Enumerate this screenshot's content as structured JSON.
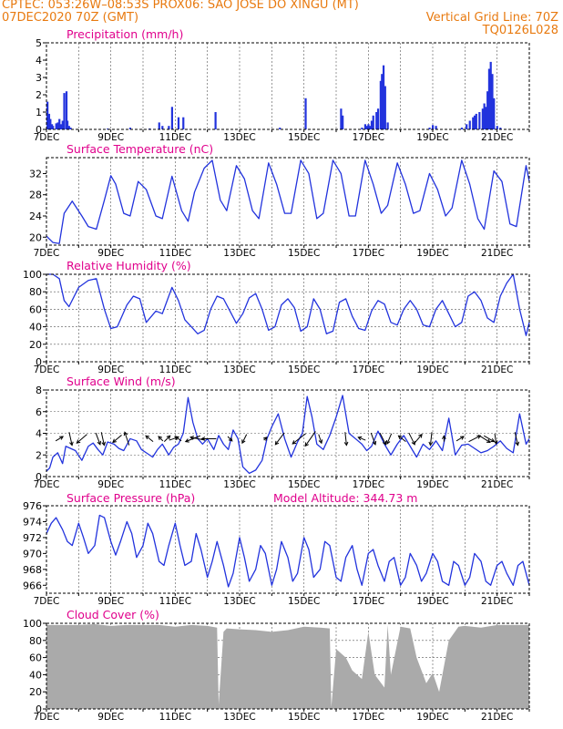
{
  "header": {
    "line1_left": "CPTEC:   053:26W–08:53S   PROX06: SAO JOSE DO XINGU (MT)",
    "line2_left": "07DEC2020 70Z (GMT)",
    "line2_right": "Vertical Grid Line: 70Z",
    "line3_right": "TQ0126L028"
  },
  "colors": {
    "header": "#e87a10",
    "title": "#e0008c",
    "series": "#2233dd",
    "cloud": "#aaaaaa",
    "arrow": "#000000"
  },
  "x_ticks": [
    "7DEC",
    "9DEC",
    "11DEC",
    "13DEC",
    "15DEC",
    "17DEC",
    "19DEC",
    "21DEC"
  ],
  "chart_data": [
    {
      "type": "bar",
      "title": "Precipitation (mm/h)",
      "ylim": [
        0,
        5
      ],
      "yticks": [
        "0",
        "1",
        "2",
        "3",
        "4",
        "5"
      ],
      "x_range_days": [
        7,
        22
      ],
      "x": [
        7.03,
        7.08,
        7.12,
        7.17,
        7.2,
        7.3,
        7.35,
        7.4,
        7.45,
        7.5,
        7.55,
        7.62,
        7.65,
        7.7,
        7.75,
        8.9,
        9.6,
        10.2,
        10.5,
        10.6,
        10.8,
        10.9,
        11.1,
        11.25,
        12.25,
        14.25,
        15.05,
        16.15,
        16.2,
        16.8,
        16.9,
        16.95,
        17.0,
        17.05,
        17.1,
        17.15,
        17.25,
        17.3,
        17.38,
        17.42,
        17.47,
        17.52,
        17.6,
        18.9,
        19.0,
        19.1,
        19.9,
        20.05,
        20.15,
        20.25,
        20.3,
        20.35,
        20.45,
        20.55,
        20.6,
        20.65,
        20.7,
        20.75,
        20.8,
        20.85,
        20.9,
        21.0,
        21.1
      ],
      "values": [
        1.6,
        0.9,
        0.6,
        0.3,
        0.2,
        0.35,
        0.4,
        0.6,
        0.3,
        0.5,
        2.1,
        2.2,
        0.5,
        0.2,
        0.1,
        0.05,
        0.1,
        0.05,
        0.4,
        0.2,
        0.2,
        1.3,
        0.7,
        0.7,
        1.0,
        0.1,
        1.8,
        1.2,
        0.8,
        0.1,
        0.3,
        0.2,
        0.3,
        0.2,
        0.5,
        0.8,
        1.0,
        1.2,
        2.8,
        3.2,
        3.7,
        2.5,
        0.4,
        0.1,
        0.25,
        0.2,
        0.1,
        0.3,
        0.5,
        0.7,
        0.8,
        0.9,
        1.0,
        1.2,
        1.5,
        1.3,
        2.2,
        3.5,
        3.9,
        3.2,
        1.8,
        0.2,
        0.1
      ]
    },
    {
      "type": "line",
      "title": "Surface Temperature (nC)",
      "ylim": [
        18.5,
        35
      ],
      "yticks": [
        "20",
        "24",
        "28",
        "32"
      ],
      "x_range_days": [
        7,
        22
      ],
      "x": [
        7.0,
        7.2,
        7.4,
        7.55,
        7.8,
        8.1,
        8.3,
        8.55,
        8.8,
        9.0,
        9.15,
        9.4,
        9.6,
        9.85,
        10.1,
        10.4,
        10.6,
        10.9,
        11.2,
        11.4,
        11.6,
        11.9,
        12.15,
        12.4,
        12.6,
        12.9,
        13.15,
        13.4,
        13.6,
        13.9,
        14.15,
        14.4,
        14.6,
        14.9,
        15.15,
        15.4,
        15.6,
        15.9,
        16.15,
        16.4,
        16.6,
        16.9,
        17.15,
        17.4,
        17.6,
        17.9,
        18.15,
        18.4,
        18.6,
        18.9,
        19.15,
        19.4,
        19.6,
        19.9,
        20.15,
        20.4,
        20.6,
        20.9,
        21.15,
        21.4,
        21.6,
        21.9,
        22.0
      ],
      "values": [
        20.2,
        19.0,
        18.8,
        24.5,
        26.8,
        24.0,
        22.0,
        21.5,
        27.0,
        31.6,
        30.0,
        24.5,
        24.0,
        30.5,
        29.0,
        24.0,
        23.5,
        31.5,
        25.0,
        23.0,
        28.5,
        33.0,
        34.5,
        27.0,
        25.0,
        33.5,
        31.0,
        25.0,
        23.5,
        34.0,
        30.0,
        24.5,
        24.5,
        34.5,
        32.0,
        23.5,
        24.5,
        34.5,
        32.0,
        24.0,
        24.0,
        34.5,
        30.0,
        24.5,
        26.0,
        34.0,
        30.0,
        24.5,
        25.0,
        32.0,
        29.0,
        24.0,
        25.5,
        34.5,
        30.0,
        23.5,
        21.5,
        32.5,
        30.5,
        22.5,
        22.0,
        33.5,
        30.5
      ]
    },
    {
      "type": "line",
      "title": "Relative Humidity (%)",
      "ylim": [
        0,
        100
      ],
      "yticks": [
        "0",
        "20",
        "40",
        "60",
        "80",
        "100"
      ],
      "x_range_days": [
        7,
        22
      ],
      "x": [
        7.0,
        7.2,
        7.4,
        7.55,
        7.7,
        8.0,
        8.3,
        8.55,
        8.8,
        9.0,
        9.2,
        9.5,
        9.7,
        9.9,
        10.1,
        10.4,
        10.6,
        10.9,
        11.1,
        11.3,
        11.5,
        11.7,
        11.9,
        12.1,
        12.3,
        12.5,
        12.7,
        12.9,
        13.1,
        13.3,
        13.5,
        13.7,
        13.9,
        14.1,
        14.3,
        14.5,
        14.7,
        14.9,
        15.1,
        15.3,
        15.5,
        15.7,
        15.9,
        16.1,
        16.3,
        16.5,
        16.7,
        16.9,
        17.1,
        17.3,
        17.5,
        17.7,
        17.9,
        18.1,
        18.3,
        18.5,
        18.7,
        18.9,
        19.1,
        19.3,
        19.5,
        19.7,
        19.9,
        20.1,
        20.3,
        20.5,
        20.7,
        20.9,
        21.1,
        21.3,
        21.5,
        21.7,
        21.9,
        22.0
      ],
      "values": [
        100,
        100,
        95,
        70,
        63,
        85,
        93,
        95,
        60,
        38,
        40,
        65,
        75,
        72,
        45,
        58,
        55,
        85,
        70,
        48,
        40,
        32,
        36,
        60,
        75,
        72,
        58,
        44,
        55,
        73,
        78,
        60,
        36,
        40,
        65,
        72,
        62,
        35,
        40,
        72,
        60,
        32,
        35,
        68,
        72,
        52,
        38,
        36,
        58,
        70,
        66,
        45,
        42,
        60,
        70,
        60,
        42,
        40,
        60,
        70,
        55,
        40,
        45,
        75,
        80,
        70,
        50,
        45,
        75,
        90,
        100,
        60,
        30,
        45
      ]
    },
    {
      "type": "line",
      "title": "Surface Wind (m/s)",
      "ylim": [
        0,
        8
      ],
      "yticks": [
        "0",
        "2",
        "4",
        "6",
        "8"
      ],
      "x_range_days": [
        7,
        22
      ],
      "x": [
        7.0,
        7.1,
        7.2,
        7.35,
        7.5,
        7.6,
        7.75,
        7.9,
        8.1,
        8.3,
        8.45,
        8.6,
        8.75,
        8.9,
        9.1,
        9.25,
        9.4,
        9.6,
        9.8,
        9.95,
        10.1,
        10.3,
        10.45,
        10.6,
        10.8,
        10.95,
        11.1,
        11.25,
        11.4,
        11.55,
        11.7,
        11.85,
        12.0,
        12.2,
        12.35,
        12.5,
        12.65,
        12.8,
        12.95,
        13.1,
        13.3,
        13.5,
        13.7,
        13.85,
        14.0,
        14.2,
        14.4,
        14.6,
        14.8,
        14.95,
        15.1,
        15.25,
        15.4,
        15.6,
        15.8,
        16.0,
        16.2,
        16.4,
        16.6,
        16.8,
        16.95,
        17.1,
        17.3,
        17.5,
        17.7,
        17.9,
        18.1,
        18.3,
        18.5,
        18.7,
        18.9,
        19.1,
        19.3,
        19.5,
        19.7,
        19.9,
        20.1,
        20.3,
        20.5,
        20.7,
        20.9,
        21.1,
        21.3,
        21.5,
        21.7,
        21.9,
        22.0
      ],
      "values": [
        0.5,
        0.8,
        1.8,
        2.2,
        1.2,
        2.8,
        2.6,
        2.4,
        1.5,
        2.8,
        3.1,
        2.5,
        2.0,
        3.2,
        3.0,
        2.6,
        2.4,
        3.5,
        3.3,
        2.5,
        2.2,
        1.8,
        2.5,
        3.0,
        2.0,
        2.7,
        3.0,
        4.0,
        7.3,
        5.0,
        3.5,
        3.0,
        3.5,
        2.5,
        3.8,
        3.0,
        2.5,
        4.3,
        3.5,
        0.9,
        0.3,
        0.6,
        1.5,
        3.5,
        4.6,
        5.8,
        3.5,
        1.8,
        3.2,
        4.0,
        7.4,
        5.5,
        3.0,
        2.5,
        3.8,
        5.5,
        7.5,
        4.0,
        3.5,
        3.0,
        2.4,
        2.8,
        4.2,
        3.0,
        2.0,
        3.0,
        3.8,
        2.8,
        1.8,
        3.0,
        2.5,
        3.3,
        2.4,
        5.4,
        2.0,
        2.9,
        3.0,
        2.6,
        2.2,
        2.4,
        2.8,
        3.3,
        2.6,
        2.2,
        5.8,
        3.0,
        3.5
      ]
    },
    {
      "type": "line",
      "title": "Surface Pressure (hPa)",
      "annotation": "Model Altitude: 344.73 m",
      "ylim": [
        965,
        976
      ],
      "yticks": [
        "966",
        "968",
        "970",
        "972",
        "974",
        "976"
      ],
      "x_range_days": [
        7,
        22
      ],
      "x": [
        7.0,
        7.15,
        7.3,
        7.5,
        7.65,
        7.8,
        8.0,
        8.15,
        8.3,
        8.5,
        8.65,
        8.8,
        9.0,
        9.15,
        9.3,
        9.5,
        9.65,
        9.8,
        10.0,
        10.15,
        10.3,
        10.5,
        10.65,
        10.8,
        11.0,
        11.15,
        11.3,
        11.5,
        11.65,
        11.8,
        12.0,
        12.15,
        12.3,
        12.5,
        12.65,
        12.8,
        13.0,
        13.15,
        13.3,
        13.5,
        13.65,
        13.8,
        14.0,
        14.15,
        14.3,
        14.5,
        14.65,
        14.8,
        15.0,
        15.15,
        15.3,
        15.5,
        15.65,
        15.8,
        16.0,
        16.15,
        16.3,
        16.5,
        16.65,
        16.8,
        17.0,
        17.15,
        17.3,
        17.5,
        17.65,
        17.8,
        18.0,
        18.15,
        18.3,
        18.5,
        18.65,
        18.8,
        19.0,
        19.15,
        19.3,
        19.5,
        19.65,
        19.8,
        20.0,
        20.15,
        20.3,
        20.5,
        20.65,
        20.8,
        21.0,
        21.15,
        21.3,
        21.5,
        21.65,
        21.8,
        22.0
      ],
      "values": [
        972.5,
        973.8,
        974.5,
        973.0,
        971.5,
        971.0,
        973.8,
        972.0,
        970.0,
        971.0,
        974.8,
        974.5,
        971.5,
        969.8,
        971.5,
        974.0,
        972.5,
        969.5,
        971.0,
        973.8,
        972.5,
        969.0,
        968.5,
        971.0,
        973.8,
        971.0,
        968.5,
        969.0,
        972.5,
        970.5,
        967.0,
        969.0,
        971.5,
        968.5,
        965.8,
        967.5,
        972.0,
        969.5,
        966.5,
        968.0,
        971.0,
        970.0,
        966.0,
        968.0,
        971.5,
        969.5,
        966.5,
        967.5,
        972.0,
        970.5,
        967.0,
        968.0,
        971.5,
        971.0,
        967.0,
        966.5,
        969.5,
        971.0,
        968.0,
        966.0,
        970.0,
        970.5,
        968.5,
        966.5,
        969.0,
        969.5,
        966.0,
        967.0,
        970.0,
        968.5,
        966.5,
        967.5,
        970.0,
        969.0,
        966.5,
        966.0,
        969.0,
        968.5,
        966.0,
        967.0,
        970.0,
        969.0,
        966.5,
        966.0,
        968.5,
        969.0,
        967.5,
        966.0,
        968.5,
        969.0,
        966.0
      ]
    },
    {
      "type": "area",
      "title": "Cloud Cover (%)",
      "ylim": [
        0,
        100
      ],
      "yticks": [
        "0",
        "20",
        "40",
        "60",
        "80",
        "100"
      ],
      "x_range_days": [
        7,
        22
      ],
      "x": [
        7.0,
        7.5,
        8.0,
        8.5,
        9.0,
        9.5,
        10.0,
        10.5,
        11.0,
        11.5,
        12.0,
        12.3,
        12.35,
        12.5,
        12.6,
        13.0,
        13.5,
        14.0,
        14.5,
        15.0,
        15.5,
        15.8,
        15.85,
        16.0,
        16.3,
        16.5,
        16.8,
        17.0,
        17.2,
        17.5,
        17.6,
        17.7,
        18.0,
        18.3,
        18.5,
        18.8,
        19.0,
        19.2,
        19.5,
        19.8,
        20.0,
        20.5,
        21.0,
        21.5,
        22.0
      ],
      "values": [
        98,
        98,
        98,
        99,
        97,
        98,
        98,
        98,
        96,
        98,
        97,
        95,
        5,
        90,
        94,
        93,
        92,
        90,
        92,
        96,
        95,
        94,
        2,
        70,
        60,
        45,
        35,
        90,
        40,
        25,
        98,
        40,
        96,
        94,
        60,
        30,
        42,
        20,
        80,
        96,
        97,
        95,
        98,
        98,
        98
      ]
    }
  ],
  "wind_arrows": [
    {
      "x": 7.4,
      "u": 0.5,
      "v": 0.3
    },
    {
      "x": 7.75,
      "u": 0.2,
      "v": -0.9
    },
    {
      "x": 8.1,
      "u": -0.7,
      "v": -0.6
    },
    {
      "x": 8.6,
      "u": 0.3,
      "v": -0.8
    },
    {
      "x": 8.75,
      "u": 0.2,
      "v": -0.9
    },
    {
      "x": 9.2,
      "u": -0.6,
      "v": -0.5
    },
    {
      "x": 9.5,
      "u": -0.3,
      "v": 0.9
    },
    {
      "x": 10.2,
      "u": -0.5,
      "v": 0.4
    },
    {
      "x": 10.55,
      "u": -0.3,
      "v": 0.3
    },
    {
      "x": 10.75,
      "u": 0.4,
      "v": 0.4
    },
    {
      "x": 10.95,
      "u": 0.6,
      "v": 0.2
    },
    {
      "x": 11.1,
      "u": -0.4,
      "v": 0.3
    },
    {
      "x": 11.55,
      "u": -1.0,
      "v": -0.4
    },
    {
      "x": 11.7,
      "u": -1.0,
      "v": 0.2
    },
    {
      "x": 12.05,
      "u": -1.0,
      "v": 0.0
    },
    {
      "x": 12.7,
      "u": 0.3,
      "v": -0.3
    },
    {
      "x": 13.15,
      "u": -0.3,
      "v": -0.6
    },
    {
      "x": 13.8,
      "u": 0.2,
      "v": 0.2
    },
    {
      "x": 14.25,
      "u": -0.6,
      "v": -0.8
    },
    {
      "x": 14.85,
      "u": -0.9,
      "v": -0.7
    },
    {
      "x": 15.2,
      "u": -0.7,
      "v": -1.0
    },
    {
      "x": 15.5,
      "u": 0.2,
      "v": -0.6
    },
    {
      "x": 16.3,
      "u": 0.1,
      "v": -0.9
    },
    {
      "x": 16.8,
      "u": -0.5,
      "v": 0.2
    },
    {
      "x": 17.15,
      "u": 0.3,
      "v": -0.8
    },
    {
      "x": 17.45,
      "u": 0.4,
      "v": -0.8
    },
    {
      "x": 17.65,
      "u": -0.3,
      "v": -0.7
    },
    {
      "x": 18.05,
      "u": -0.5,
      "v": 0.4
    },
    {
      "x": 18.35,
      "u": 0.4,
      "v": -0.8
    },
    {
      "x": 18.55,
      "u": 0.5,
      "v": 0.6
    },
    {
      "x": 18.95,
      "u": -0.1,
      "v": -0.9
    },
    {
      "x": 19.35,
      "u": 0.0,
      "v": 0.4
    },
    {
      "x": 19.85,
      "u": 0.5,
      "v": 0.3
    },
    {
      "x": 20.3,
      "u": 0.8,
      "v": 0.4
    },
    {
      "x": 20.6,
      "u": 0.8,
      "v": -0.5
    },
    {
      "x": 20.75,
      "u": 0.7,
      "v": -0.4
    },
    {
      "x": 20.95,
      "u": 0.1,
      "v": -0.7
    },
    {
      "x": 21.6,
      "u": 0.2,
      "v": -0.9
    }
  ]
}
